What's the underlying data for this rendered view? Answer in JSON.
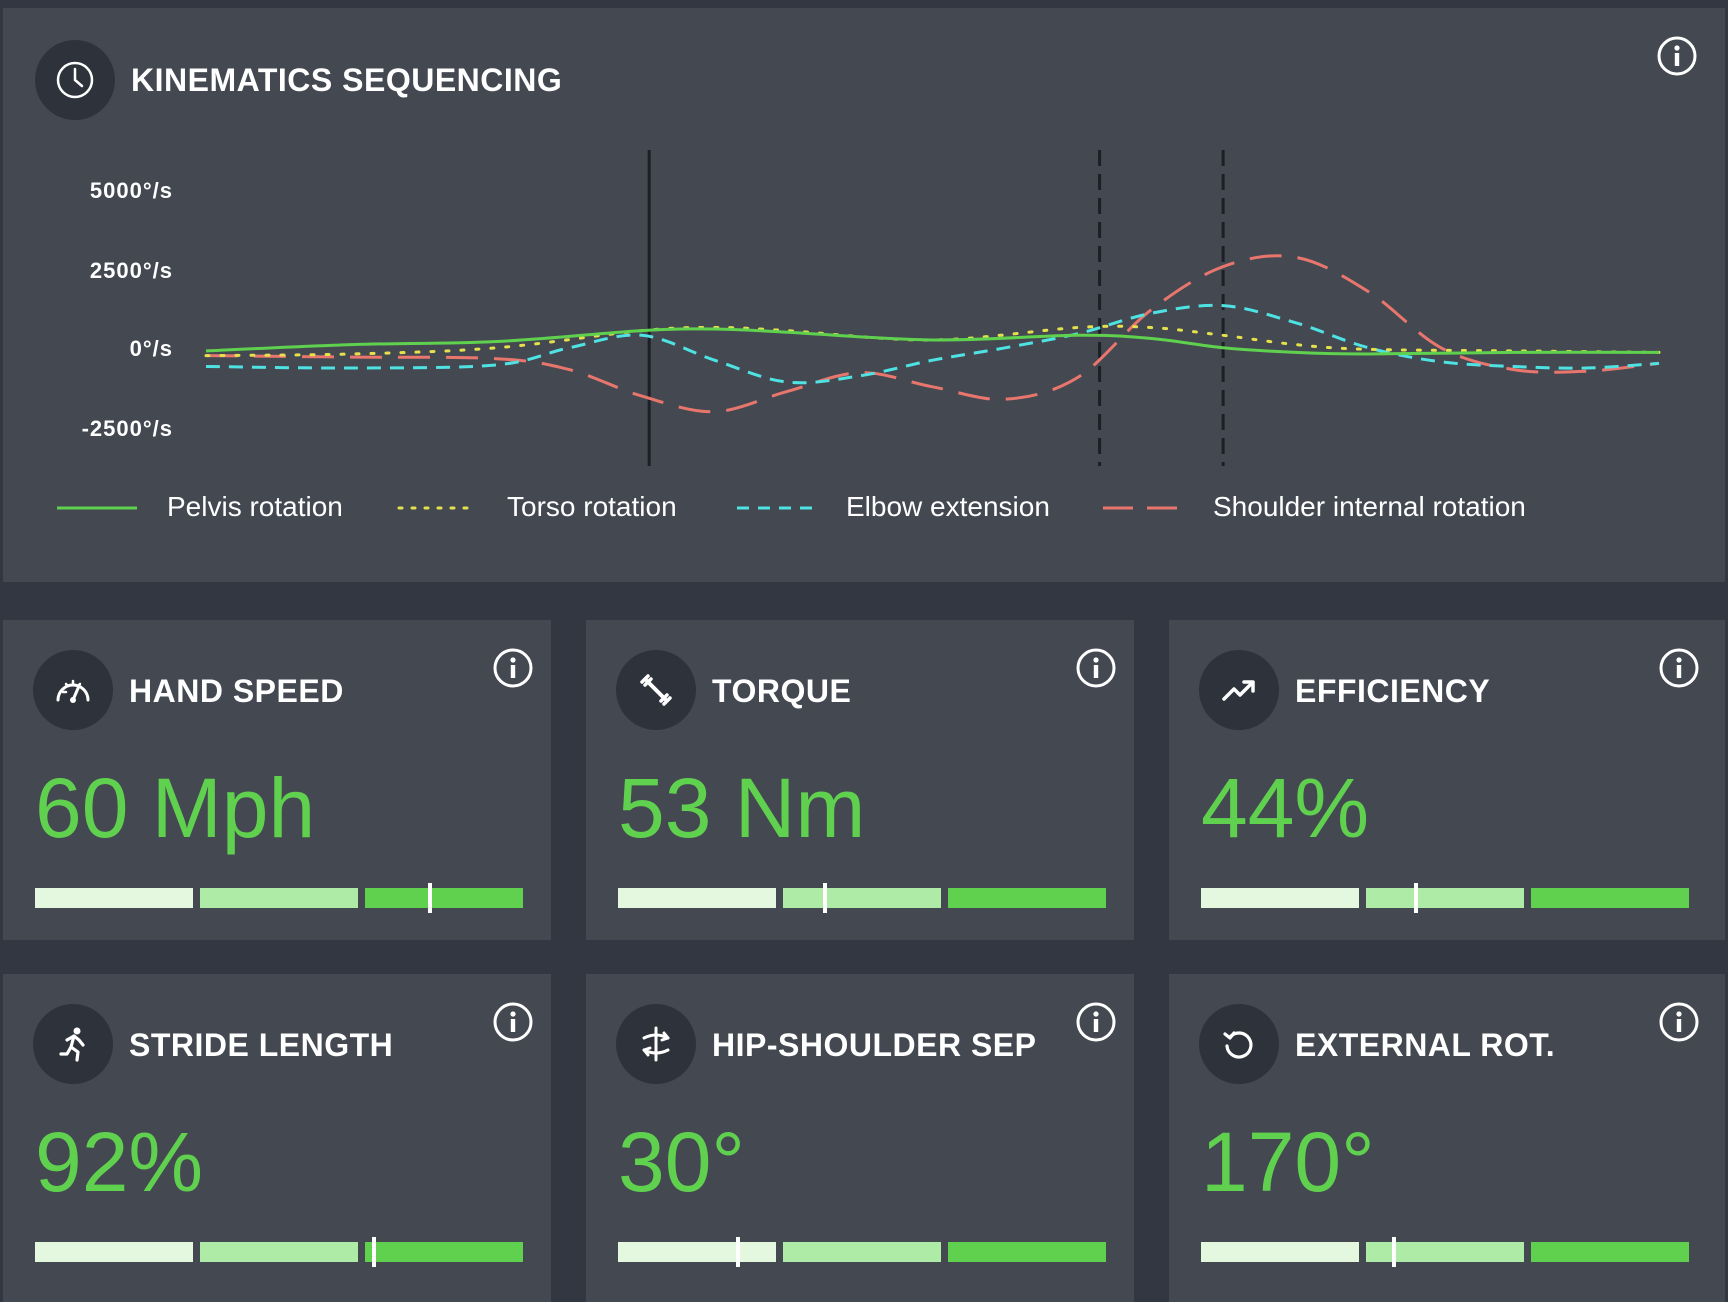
{
  "kinematics": {
    "title": "KINEMATICS SEQUENCING",
    "icon": "clock-icon",
    "info_icon": "info-icon",
    "chart_data": {
      "type": "line",
      "title": "",
      "xlabel": "",
      "ylabel": "",
      "y_unit": "°/s",
      "yticks": [
        "5000°/s",
        "2500°/s",
        "0°/s",
        "-2500°/s"
      ],
      "ylim": [
        -3500,
        6000
      ],
      "xlim": [
        0,
        100
      ],
      "grid": false,
      "legend_position": "bottom",
      "event_lines": [
        {
          "x": 30.5,
          "style": "solid"
        },
        {
          "x": 61.5,
          "style": "dashed"
        },
        {
          "x": 70,
          "style": "dashed"
        }
      ],
      "series": [
        {
          "name": "Pelvis rotation",
          "color": "#60d14e",
          "style": "solid",
          "x": [
            0,
            10,
            20,
            30,
            35,
            40,
            50,
            60,
            65,
            70,
            75,
            80,
            90,
            100
          ],
          "y": [
            100,
            300,
            400,
            750,
            800,
            700,
            450,
            600,
            500,
            200,
            50,
            0,
            50,
            50
          ]
        },
        {
          "name": "Torso rotation",
          "color": "#e5e14c",
          "style": "dotted",
          "x": [
            0,
            10,
            20,
            30,
            35,
            40,
            50,
            60,
            65,
            70,
            75,
            80,
            90,
            100
          ],
          "y": [
            -50,
            0,
            200,
            750,
            850,
            750,
            450,
            850,
            850,
            600,
            300,
            150,
            100,
            50
          ]
        },
        {
          "name": "Elbow extension",
          "color": "#4fe2e3",
          "style": "dashed",
          "x": [
            0,
            10,
            20,
            25,
            30,
            35,
            40,
            45,
            50,
            55,
            60,
            65,
            70,
            75,
            80,
            85,
            90,
            95,
            100
          ],
          "y": [
            -400,
            -450,
            -350,
            200,
            600,
            -200,
            -900,
            -700,
            -200,
            200,
            650,
            1300,
            1550,
            1000,
            200,
            -250,
            -400,
            -450,
            -300
          ]
        },
        {
          "name": "Shoulder internal rotation",
          "color": "#e8766d",
          "style": "longdash",
          "x": [
            0,
            10,
            20,
            25,
            30,
            35,
            40,
            45,
            50,
            55,
            60,
            65,
            70,
            75,
            80,
            85,
            90,
            95,
            100
          ],
          "y": [
            -50,
            -100,
            -150,
            -500,
            -1350,
            -1850,
            -1200,
            -600,
            -1050,
            -1450,
            -750,
            1400,
            2800,
            3100,
            2000,
            200,
            -500,
            -550,
            -300
          ]
        }
      ]
    }
  },
  "metrics": [
    {
      "title": "HAND SPEED",
      "value": "60 Mph",
      "icon": "speedometer-icon",
      "marker_fraction": 0.81
    },
    {
      "title": "TORQUE",
      "value": "53 Nm",
      "icon": "wrench-icon",
      "marker_fraction": 0.425
    },
    {
      "title": "EFFICIENCY",
      "value": "44%",
      "icon": "trending-up-icon",
      "marker_fraction": 0.44
    },
    {
      "title": "STRIDE LENGTH",
      "value": "92%",
      "icon": "running-icon",
      "marker_fraction": 0.695
    },
    {
      "title": "HIP-SHOULDER SEP",
      "value": "30°",
      "icon": "rotate-arrows-icon",
      "marker_fraction": 0.245
    },
    {
      "title": "EXTERNAL ROT.",
      "value": "170°",
      "icon": "rotate-ccw-icon",
      "marker_fraction": 0.395
    }
  ],
  "bar_colors": [
    "#e3f8de",
    "#aeeba7",
    "#5fd14f"
  ],
  "accent_color": "#60d14e"
}
